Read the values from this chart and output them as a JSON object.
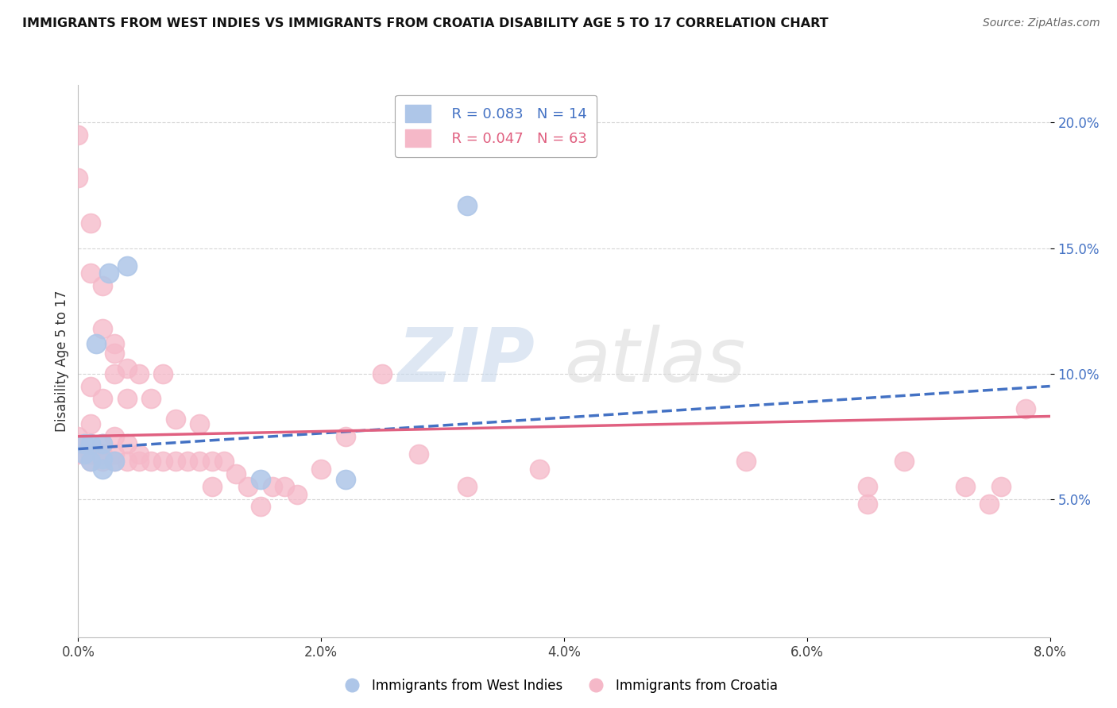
{
  "title": "IMMIGRANTS FROM WEST INDIES VS IMMIGRANTS FROM CROATIA DISABILITY AGE 5 TO 17 CORRELATION CHART",
  "source": "Source: ZipAtlas.com",
  "ylabel_label": "Disability Age 5 to 17",
  "xlim": [
    0.0,
    0.08
  ],
  "ylim": [
    -0.005,
    0.215
  ],
  "xticks": [
    0.0,
    0.02,
    0.04,
    0.06,
    0.08
  ],
  "xtick_labels": [
    "0.0%",
    "2.0%",
    "4.0%",
    "6.0%",
    "8.0%"
  ],
  "ytick_labels": [
    "5.0%",
    "10.0%",
    "15.0%",
    "20.0%"
  ],
  "yticks": [
    0.05,
    0.1,
    0.15,
    0.2
  ],
  "legend_r_blue": "R = 0.083",
  "legend_n_blue": "N = 14",
  "legend_r_pink": "R = 0.047",
  "legend_n_pink": "N = 63",
  "blue_scatter_color": "#aec6e8",
  "pink_scatter_color": "#f5b8c8",
  "blue_line_color": "#4472c4",
  "pink_line_color": "#e06080",
  "watermark_zip": "ZIP",
  "watermark_atlas": "atlas",
  "west_indies_x": [
    0.0005,
    0.0005,
    0.001,
    0.001,
    0.0015,
    0.002,
    0.002,
    0.002,
    0.003,
    0.0025,
    0.004,
    0.015,
    0.022,
    0.032
  ],
  "west_indies_y": [
    0.072,
    0.068,
    0.065,
    0.072,
    0.112,
    0.062,
    0.066,
    0.072,
    0.065,
    0.14,
    0.143,
    0.058,
    0.058,
    0.167
  ],
  "croatia_x": [
    0.0,
    0.0,
    0.0,
    0.001,
    0.001,
    0.001,
    0.001,
    0.001,
    0.002,
    0.002,
    0.002,
    0.002,
    0.003,
    0.003,
    0.003,
    0.003,
    0.004,
    0.004,
    0.004,
    0.005,
    0.005,
    0.005,
    0.006,
    0.006,
    0.007,
    0.007,
    0.008,
    0.008,
    0.009,
    0.01,
    0.01,
    0.011,
    0.011,
    0.012,
    0.013,
    0.014,
    0.015,
    0.016,
    0.017,
    0.018,
    0.02,
    0.022,
    0.025,
    0.028,
    0.032,
    0.038,
    0.055,
    0.065,
    0.065,
    0.068,
    0.073,
    0.075,
    0.076,
    0.078,
    0.0,
    0.0,
    0.001,
    0.001,
    0.002,
    0.002,
    0.003,
    0.003,
    0.004
  ],
  "croatia_y": [
    0.068,
    0.072,
    0.075,
    0.065,
    0.068,
    0.072,
    0.08,
    0.095,
    0.065,
    0.068,
    0.072,
    0.09,
    0.065,
    0.068,
    0.075,
    0.1,
    0.065,
    0.072,
    0.09,
    0.065,
    0.068,
    0.1,
    0.065,
    0.09,
    0.065,
    0.1,
    0.065,
    0.082,
    0.065,
    0.065,
    0.08,
    0.065,
    0.055,
    0.065,
    0.06,
    0.055,
    0.047,
    0.055,
    0.055,
    0.052,
    0.062,
    0.075,
    0.1,
    0.068,
    0.055,
    0.062,
    0.065,
    0.048,
    0.055,
    0.065,
    0.055,
    0.048,
    0.055,
    0.086,
    0.195,
    0.178,
    0.16,
    0.14,
    0.135,
    0.118,
    0.112,
    0.108,
    0.102
  ],
  "blue_trend_x": [
    0.0,
    0.08
  ],
  "blue_trend_y": [
    0.07,
    0.095
  ],
  "pink_trend_x": [
    0.0,
    0.08
  ],
  "pink_trend_y": [
    0.075,
    0.083
  ]
}
